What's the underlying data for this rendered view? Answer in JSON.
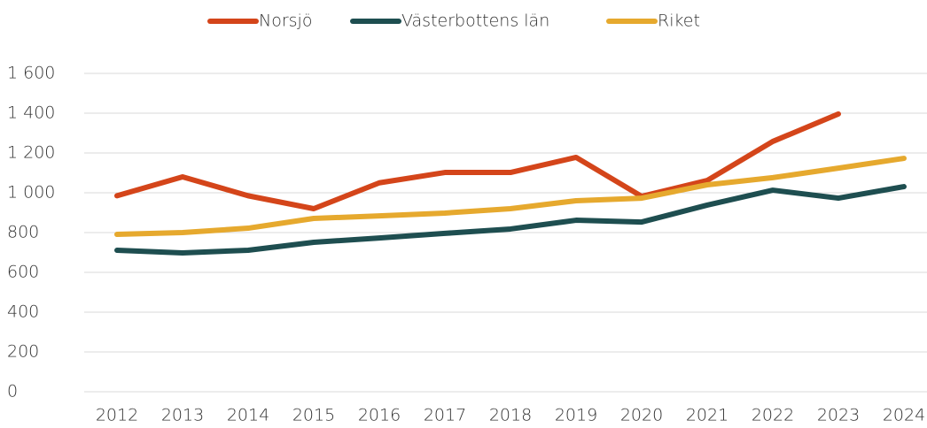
{
  "chart_data": {
    "type": "line",
    "x": [
      2012,
      2013,
      2014,
      2015,
      2016,
      2017,
      2018,
      2019,
      2020,
      2021,
      2022,
      2023,
      2024
    ],
    "series": [
      {
        "name": "Norsjö",
        "color": "#d4451a",
        "values": [
          985,
          1080,
          985,
          920,
          1050,
          1102,
          1102,
          1178,
          982,
          1062,
          1258,
          1396,
          null
        ]
      },
      {
        "name": "Västerbottens län",
        "color": "#1e4e50",
        "values": [
          711,
          698,
          711,
          751,
          773,
          796,
          818,
          862,
          853,
          938,
          1013,
          973,
          1031
        ]
      },
      {
        "name": "Riket",
        "color": "#e6a92e",
        "values": [
          791,
          800,
          822,
          871,
          884,
          898,
          920,
          960,
          973,
          1040,
          1076,
          1124,
          1173
        ]
      }
    ],
    "ylim": [
      0,
      1600
    ],
    "yticks": [
      0,
      200,
      400,
      600,
      800,
      {
        "value": 1000,
        "label": "1 000"
      },
      {
        "value": 1200,
        "label": "1 200"
      },
      {
        "value": 1400,
        "label": "1 400"
      },
      {
        "value": 1600,
        "label": "1 600"
      }
    ],
    "grid": true,
    "legend": "top"
  }
}
